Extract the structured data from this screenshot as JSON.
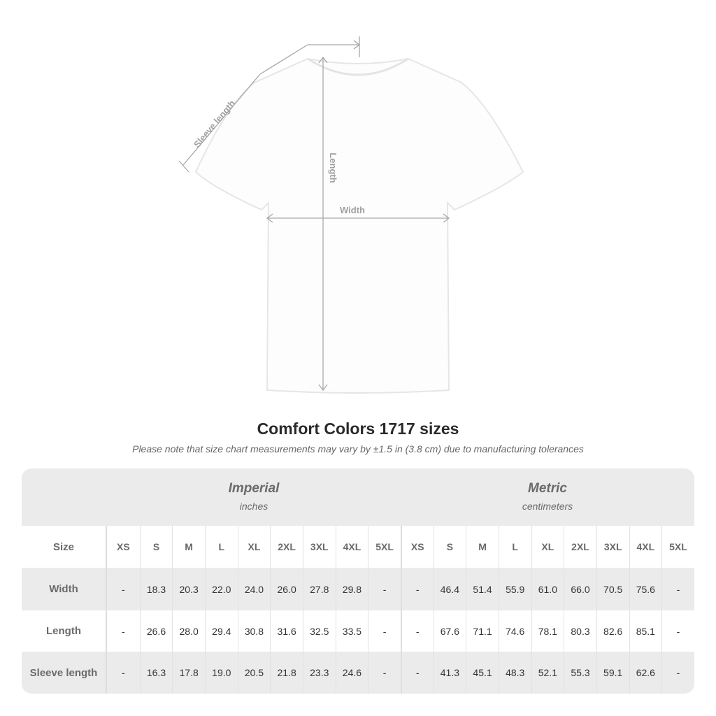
{
  "diagram": {
    "sleeve_label": "Sleeve length",
    "length_label": "Length",
    "width_label": "Width"
  },
  "title": "Comfort Colors 1717 sizes",
  "note": "Please note that size chart measurements may vary by ±1.5 in (3.8 cm) due to manufacturing tolerances",
  "table": {
    "imperial": {
      "title": "Imperial",
      "unit": "inches"
    },
    "metric": {
      "title": "Metric",
      "unit": "centimeters"
    },
    "size_label": "Size",
    "sizes": [
      "XS",
      "S",
      "M",
      "L",
      "XL",
      "2XL",
      "3XL",
      "4XL",
      "5XL"
    ],
    "rows": [
      {
        "label": "Width",
        "imperial": [
          "-",
          "18.3",
          "20.3",
          "22.0",
          "24.0",
          "26.0",
          "27.8",
          "29.8",
          "-"
        ],
        "metric": [
          "-",
          "46.4",
          "51.4",
          "55.9",
          "61.0",
          "66.0",
          "70.5",
          "75.6",
          "-"
        ]
      },
      {
        "label": "Length",
        "imperial": [
          "-",
          "26.6",
          "28.0",
          "29.4",
          "30.8",
          "31.6",
          "32.5",
          "33.5",
          "-"
        ],
        "metric": [
          "-",
          "67.6",
          "71.1",
          "74.6",
          "78.1",
          "80.3",
          "82.6",
          "85.1",
          "-"
        ]
      },
      {
        "label": "Sleeve length",
        "imperial": [
          "-",
          "16.3",
          "17.8",
          "19.0",
          "20.5",
          "21.8",
          "23.3",
          "24.6",
          "-"
        ],
        "metric": [
          "-",
          "41.3",
          "45.1",
          "48.3",
          "52.1",
          "55.3",
          "59.1",
          "62.6",
          "-"
        ]
      }
    ]
  }
}
